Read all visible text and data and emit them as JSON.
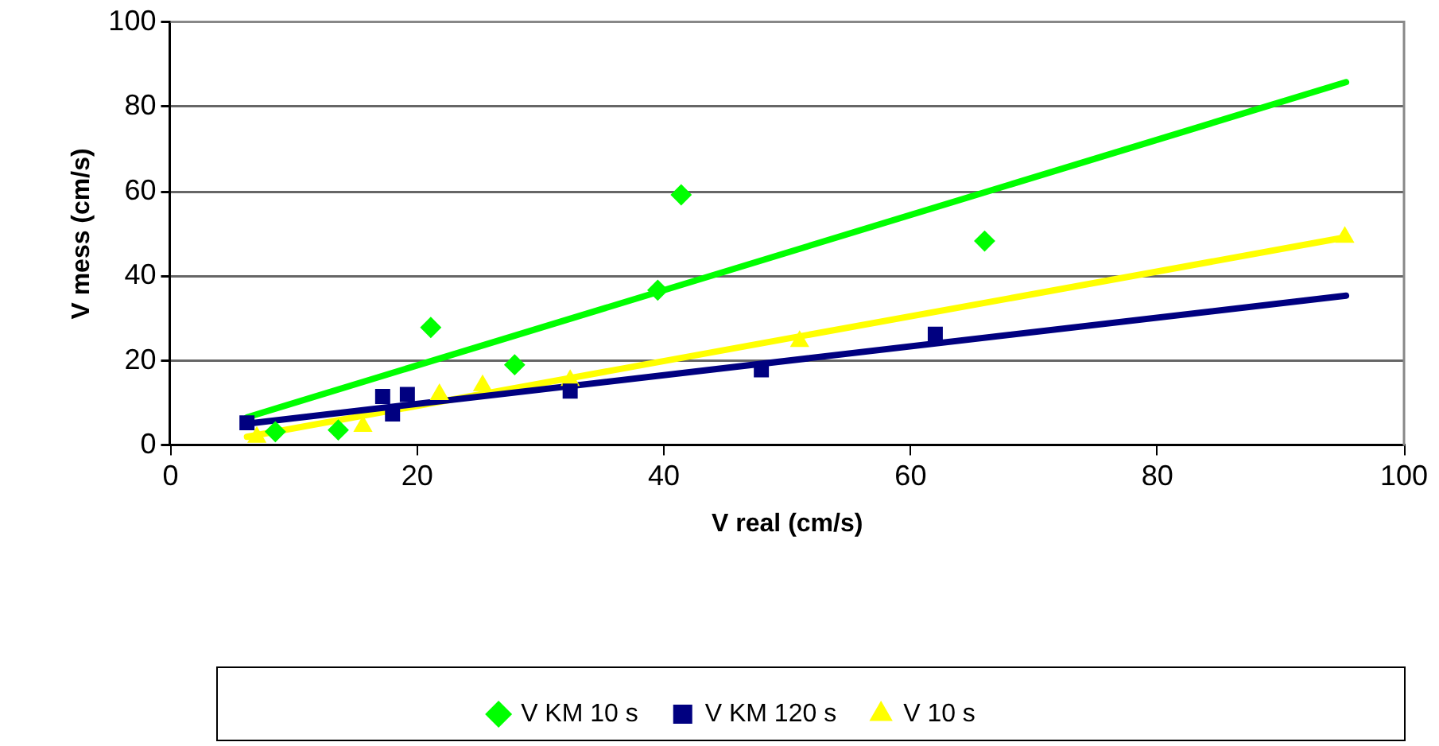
{
  "chart_data": {
    "type": "scatter",
    "xlabel": "V real (cm/s)",
    "ylabel": "V mess (cm/s)",
    "xlim": [
      0,
      100
    ],
    "xticks": [
      0,
      20,
      40,
      60,
      80,
      100
    ],
    "ylim": [
      0,
      100
    ],
    "yticks": [
      0,
      20,
      40,
      60,
      80,
      100
    ],
    "grid": "y",
    "legend": "bottom",
    "series": [
      {
        "name": "V KM 10 s",
        "color": "#00ff00",
        "marker": "diamond",
        "x": [
          8.5,
          13.6,
          21.1,
          27.9,
          39.5,
          41.4,
          66.0
        ],
        "values": [
          3.3,
          3.7,
          27.9,
          19.1,
          36.7,
          59.2,
          48.3
        ]
      },
      {
        "name": "V KM 120 s",
        "color": "#000080",
        "marker": "square",
        "x": [
          6.2,
          17.2,
          18.0,
          19.2,
          32.4,
          47.9,
          62.0
        ],
        "values": [
          5.4,
          11.6,
          7.5,
          12.1,
          12.9,
          17.9,
          26.3
        ]
      },
      {
        "name": "V 10 s",
        "color": "#ffff00",
        "marker": "triangle",
        "x": [
          7.0,
          15.6,
          21.8,
          25.3,
          32.4,
          51.0,
          95.2
        ],
        "values": [
          2.0,
          4.6,
          12.1,
          14.2,
          15.4,
          24.6,
          49.2
        ]
      },
      {
        "type": "line",
        "color": "#00ff00",
        "marker": "none",
        "x": [
          6.2,
          95.3
        ],
        "values": [
          6.7,
          85.8
        ]
      },
      {
        "type": "line",
        "color": "#000080",
        "marker": "none",
        "x": [
          6.2,
          95.3
        ],
        "values": [
          5.2,
          35.4
        ]
      },
      {
        "type": "line",
        "color": "#ffff00",
        "marker": "none",
        "x": [
          6.2,
          95.3
        ],
        "values": [
          2.1,
          49.2
        ]
      }
    ]
  }
}
